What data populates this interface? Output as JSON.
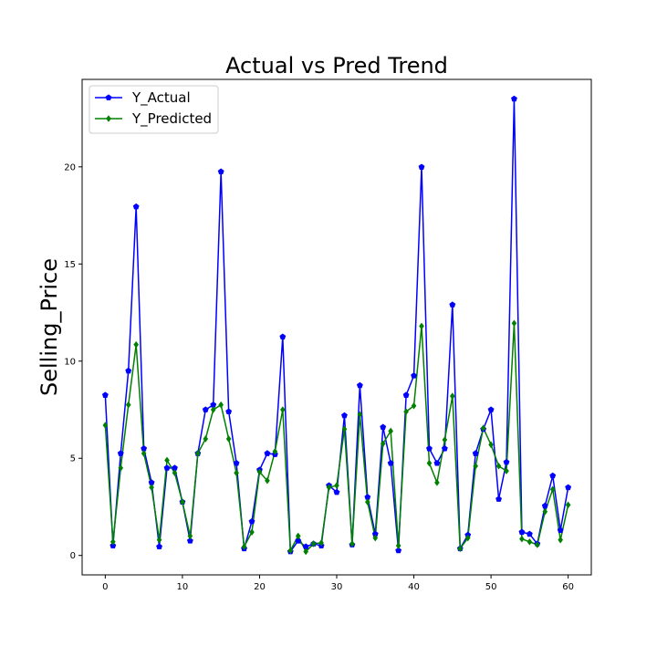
{
  "chart_data": {
    "type": "line",
    "title": "Actual vs Pred Trend",
    "xlabel": "",
    "ylabel": "Selling_Price",
    "xlim": [
      -3,
      63
    ],
    "ylim": [
      -1,
      24.5
    ],
    "xticks": [
      0,
      10,
      20,
      30,
      40,
      50,
      60
    ],
    "yticks": [
      0,
      5,
      10,
      15,
      20
    ],
    "legend_position": "upper-left",
    "series": [
      {
        "name": "Y_Actual",
        "color": "#0000ff",
        "marker": "pentagon",
        "values": [
          8.25,
          0.5,
          5.25,
          9.5,
          17.95,
          5.5,
          3.75,
          0.45,
          4.5,
          4.5,
          2.75,
          0.75,
          5.25,
          7.5,
          7.75,
          19.75,
          7.4,
          4.75,
          0.35,
          1.75,
          4.4,
          5.25,
          5.2,
          11.25,
          0.2,
          0.75,
          0.45,
          0.6,
          0.5,
          3.6,
          3.25,
          7.2,
          0.55,
          8.75,
          3.0,
          1.1,
          6.6,
          4.75,
          0.25,
          8.25,
          9.25,
          19.99,
          5.5,
          4.75,
          5.5,
          12.9,
          0.35,
          1.05,
          5.25,
          6.5,
          7.5,
          2.9,
          4.8,
          23.5,
          1.2,
          1.1,
          0.6,
          2.55,
          4.1,
          1.3,
          3.5
        ]
      },
      {
        "name": "Y_Predicted",
        "color": "#008000",
        "marker": "diamond",
        "values": [
          6.7,
          0.7,
          4.5,
          7.75,
          10.85,
          5.25,
          3.5,
          0.8,
          4.9,
          4.25,
          2.75,
          1.0,
          5.25,
          6.0,
          7.5,
          7.75,
          6.0,
          4.25,
          0.45,
          1.2,
          4.3,
          3.85,
          5.35,
          7.5,
          0.25,
          1.0,
          0.2,
          0.6,
          0.65,
          3.5,
          3.6,
          6.5,
          0.6,
          7.25,
          2.75,
          0.9,
          5.75,
          6.4,
          0.5,
          7.4,
          7.7,
          11.8,
          4.75,
          3.75,
          5.95,
          8.2,
          0.35,
          0.9,
          4.6,
          6.55,
          5.7,
          4.6,
          4.35,
          11.95,
          0.85,
          0.7,
          0.55,
          2.25,
          3.4,
          0.8,
          2.6
        ]
      }
    ]
  }
}
